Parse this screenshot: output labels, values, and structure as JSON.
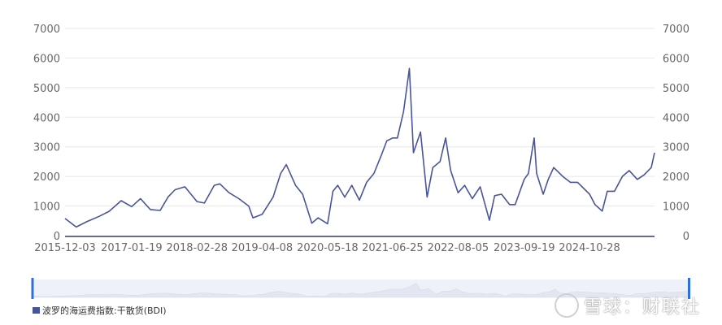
{
  "chart_data": {
    "type": "line",
    "title": "",
    "xlabel": "",
    "ylabel": "",
    "ylim": [
      0,
      7000
    ],
    "y_ticks": [
      0,
      1000,
      2000,
      3000,
      4000,
      5000,
      6000,
      7000
    ],
    "y_ticks_right": [
      0,
      1000,
      2000,
      3000,
      4000,
      5000,
      6000,
      7000
    ],
    "x_tick_labels": [
      "2015-12-03",
      "2017-01-19",
      "2018-02-28",
      "2019-04-08",
      "2020-05-18",
      "2021-06-25",
      "2022-08-05",
      "2023-09-19",
      "2024-10-28"
    ],
    "grid": true,
    "legend_position": "bottom-left",
    "series": [
      {
        "name": "波罗的海运费指数:干散货(BDI)",
        "color": "#4a5597",
        "x": [
          "2015-12-03",
          "2016-02-10",
          "2016-04-15",
          "2016-07-01",
          "2016-09-01",
          "2016-11-15",
          "2017-01-19",
          "2017-03-15",
          "2017-05-15",
          "2017-07-15",
          "2017-09-01",
          "2017-10-15",
          "2017-12-15",
          "2018-02-28",
          "2018-04-15",
          "2018-06-15",
          "2018-07-20",
          "2018-09-15",
          "2018-11-15",
          "2019-01-15",
          "2019-02-10",
          "2019-04-08",
          "2019-06-15",
          "2019-08-01",
          "2019-09-05",
          "2019-11-01",
          "2019-12-15",
          "2020-02-10",
          "2020-03-20",
          "2020-05-18",
          "2020-06-20",
          "2020-07-20",
          "2020-09-01",
          "2020-10-15",
          "2020-12-01",
          "2021-01-15",
          "2021-03-01",
          "2021-04-15",
          "2021-05-20",
          "2021-06-25",
          "2021-07-25",
          "2021-09-01",
          "2021-10-07",
          "2021-11-01",
          "2021-12-15",
          "2022-01-25",
          "2022-03-01",
          "2022-04-15",
          "2022-05-20",
          "2022-06-20",
          "2022-08-05",
          "2022-09-15",
          "2022-11-01",
          "2022-12-20",
          "2023-02-15",
          "2023-03-20",
          "2023-05-01",
          "2023-06-20",
          "2023-07-25",
          "2023-09-19",
          "2023-10-15",
          "2023-11-20",
          "2023-12-05",
          "2024-01-15",
          "2024-02-15",
          "2024-03-20",
          "2024-05-15",
          "2024-07-01",
          "2024-08-15",
          "2024-10-28",
          "2024-12-01",
          "2025-01-15",
          "2025-02-15",
          "2025-04-01",
          "2025-05-20",
          "2025-07-01",
          "2025-08-20",
          "2025-10-01",
          "2025-11-15",
          "2025-12-05"
        ],
        "values": [
          580,
          290,
          470,
          650,
          820,
          1180,
          980,
          1250,
          880,
          850,
          1300,
          1550,
          1650,
          1150,
          1100,
          1700,
          1750,
          1450,
          1250,
          1000,
          600,
          720,
          1300,
          2100,
          2400,
          1700,
          1400,
          420,
          600,
          400,
          1500,
          1700,
          1300,
          1700,
          1200,
          1800,
          2100,
          2700,
          3200,
          3300,
          3300,
          4200,
          5650,
          2800,
          3500,
          1300,
          2300,
          2500,
          3300,
          2200,
          1450,
          1700,
          1250,
          1650,
          520,
          1350,
          1400,
          1050,
          1050,
          1900,
          2100,
          3300,
          2100,
          1400,
          1900,
          2300,
          2000,
          1800,
          1800,
          1400,
          1050,
          830,
          1500,
          1500,
          2000,
          2200,
          1900,
          2050,
          2300,
          2800
        ]
      }
    ]
  }
}
